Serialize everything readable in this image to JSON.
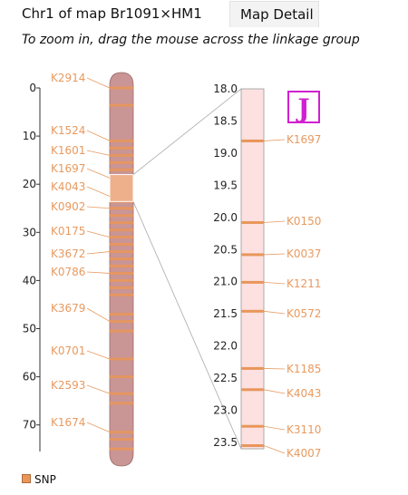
{
  "header": {
    "title": "Chr1 of map Br1091×HM1",
    "tab_label": "Map Detail",
    "instruction": "To zoom in, drag the mouse across the linkage group"
  },
  "colors": {
    "marker": "#e8965a",
    "label": "#e89a60",
    "chromosome_body": "#c99595",
    "zoom_body": "#fde0e0",
    "selection": "#eeb08a",
    "logo": "#d020d0"
  },
  "logo": {
    "text": "J"
  },
  "legend": {
    "label": "SNP"
  },
  "overview": {
    "axis_ticks": [
      "0",
      "10",
      "20",
      "30",
      "40",
      "50",
      "60",
      "70"
    ],
    "axis_min": 0,
    "axis_max": 75.5,
    "selection_range": [
      18.0,
      23.6
    ],
    "band_positions": [
      0.0,
      3.6,
      11.0,
      12.5,
      14.0,
      15.5,
      17.0,
      18.7,
      20.0,
      20.5,
      21.0,
      21.5,
      22.5,
      23.6,
      25.0,
      26.5,
      28.0,
      29.5,
      31.0,
      32.5,
      34.0,
      35.5,
      37.0,
      38.5,
      40.0,
      41.5,
      43.0,
      47.0,
      48.5,
      50.5,
      56.3,
      60.0,
      63.5,
      65.5,
      71.5,
      73.0,
      75.0
    ],
    "labels": [
      {
        "name": "K2914",
        "pos": 0.0
      },
      {
        "name": "K1524",
        "pos": 11.0
      },
      {
        "name": "K1601",
        "pos": 14.0
      },
      {
        "name": "K1697",
        "pos": 18.7
      },
      {
        "name": "K4043",
        "pos": 22.5
      },
      {
        "name": "K0902",
        "pos": 25.0
      },
      {
        "name": "K0175",
        "pos": 31.0
      },
      {
        "name": "K3672",
        "pos": 34.0
      },
      {
        "name": "K0786",
        "pos": 38.5
      },
      {
        "name": "K3679",
        "pos": 48.5
      },
      {
        "name": "K0701",
        "pos": 56.3
      },
      {
        "name": "K2593",
        "pos": 63.5
      },
      {
        "name": "K1674",
        "pos": 71.5
      }
    ]
  },
  "zoom": {
    "axis_ticks": [
      "18.0",
      "18.5",
      "19.0",
      "19.5",
      "20.0",
      "20.5",
      "21.0",
      "21.5",
      "22.0",
      "22.5",
      "23.0",
      "23.5"
    ],
    "axis_min": 18.0,
    "axis_max": 23.6,
    "markers": [
      {
        "name": "K1697",
        "pos": 18.81
      },
      {
        "name": "K0150",
        "pos": 20.08
      },
      {
        "name": "K0037",
        "pos": 20.58
      },
      {
        "name": "K1211",
        "pos": 21.01
      },
      {
        "name": "K0572",
        "pos": 21.46
      },
      {
        "name": "K1185",
        "pos": 22.35
      },
      {
        "name": "K4043",
        "pos": 22.68
      },
      {
        "name": "K3110",
        "pos": 23.25
      },
      {
        "name": "K4007",
        "pos": 23.55
      }
    ]
  }
}
